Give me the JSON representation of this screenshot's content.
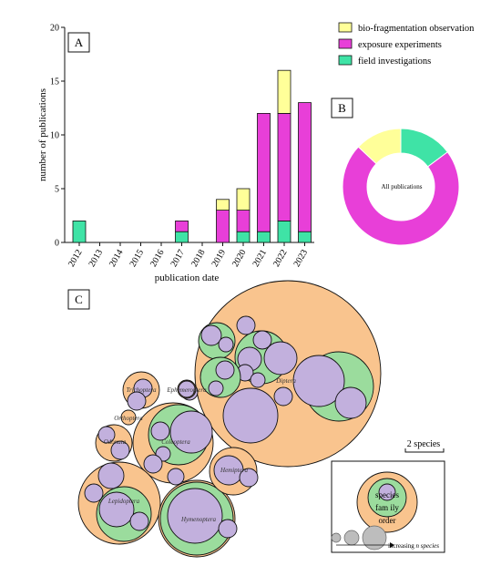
{
  "colors": {
    "bio": "#ffff99",
    "exposure": "#e83fd8",
    "field": "#3fe3a6",
    "order": "#f9c48e",
    "family": "#9bdc9d",
    "species": "#c2b0dd",
    "stroke": "#111111"
  },
  "panels": {
    "a": "A",
    "b": "B",
    "c": "C"
  },
  "chart_data": [
    {
      "type": "bar",
      "stacked": true,
      "categories": [
        "2012",
        "2013",
        "2014",
        "2015",
        "2016",
        "2017",
        "2018",
        "2019",
        "2020",
        "2021",
        "2022",
        "2023"
      ],
      "series": [
        {
          "name": "field investigations",
          "color_key": "field",
          "values": [
            2,
            0,
            0,
            0,
            0,
            1,
            0,
            0,
            1,
            1,
            2,
            1
          ]
        },
        {
          "name": "exposure experiments",
          "color_key": "exposure",
          "values": [
            0,
            0,
            0,
            0,
            0,
            1,
            0,
            3,
            2,
            11,
            10,
            12
          ]
        },
        {
          "name": "bio-fragmentation observation",
          "color_key": "bio",
          "values": [
            0,
            0,
            0,
            0,
            0,
            0,
            0,
            1,
            2,
            0,
            4,
            0
          ]
        }
      ],
      "xlabel": "publication date",
      "ylabel": "number of publications",
      "ylim": [
        0,
        20
      ],
      "yticks": [
        0,
        5,
        10,
        15,
        20
      ],
      "legend": [
        "bio-fragmentation observation",
        "exposure experiments",
        "field investigations"
      ],
      "legend_position": "top-right"
    },
    {
      "type": "pie",
      "donut": true,
      "center_label": "All publications",
      "slices": [
        {
          "name": "field investigations",
          "color_key": "field",
          "value": 8
        },
        {
          "name": "exposure experiments",
          "color_key": "exposure",
          "value": 39
        },
        {
          "name": "bio-fragmentation observation",
          "color_key": "bio",
          "value": 7
        }
      ]
    },
    {
      "type": "circle-packing",
      "orders": [
        {
          "name": "Diptera"
        },
        {
          "name": "Coleoptera"
        },
        {
          "name": "Lepidoptera"
        },
        {
          "name": "Hymenoptera"
        },
        {
          "name": "Hemiptera"
        },
        {
          "name": "Trichoptera"
        },
        {
          "name": "Odonata"
        },
        {
          "name": "Orthoptera"
        },
        {
          "name": "Ephemeroptera"
        }
      ],
      "scale_label": "2 species",
      "key": {
        "species": "species",
        "family": "fam ily",
        "order": "order",
        "increasing": "increasing",
        "increasing_italic": "n species"
      }
    }
  ]
}
